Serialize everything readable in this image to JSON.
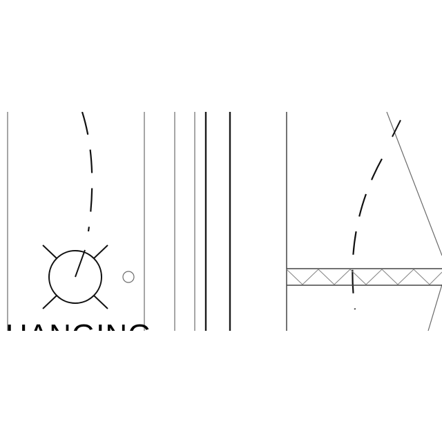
{
  "drawing": {
    "label": "HANGING"
  }
}
